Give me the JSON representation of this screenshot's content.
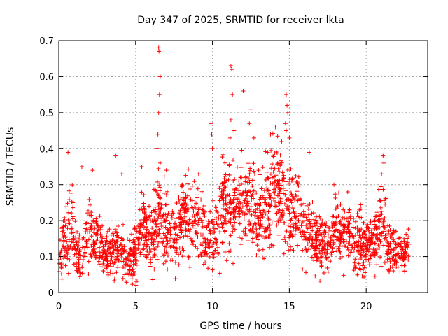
{
  "chart_data": {
    "type": "scatter",
    "title": "Day 347 of 2025, SRMTID for receiver lkta",
    "xlabel": "GPS time / hours",
    "ylabel": "SRMTID / TECUs",
    "xlim": [
      0,
      24
    ],
    "ylim": [
      0,
      0.7
    ],
    "xticks": [
      0,
      5,
      10,
      15,
      20
    ],
    "yticks": [
      0,
      0.1,
      0.2,
      0.3,
      0.4,
      0.5,
      0.6,
      0.7
    ],
    "xtick_labels": [
      "0",
      "5",
      "10",
      "15",
      "20"
    ],
    "ytick_labels": [
      "0",
      "0.1",
      "0.2",
      "0.3",
      "0.4",
      "0.5",
      "0.6",
      "0.7"
    ],
    "grid": true,
    "marker": "+",
    "color": "#ff0000",
    "x_end": 22.8,
    "envelope": [
      [
        0.0,
        0.1,
        0.05
      ],
      [
        0.5,
        0.15,
        0.07
      ],
      [
        0.8,
        0.22,
        0.09
      ],
      [
        1.0,
        0.12,
        0.05
      ],
      [
        1.5,
        0.09,
        0.04
      ],
      [
        2.0,
        0.17,
        0.07
      ],
      [
        2.5,
        0.15,
        0.06
      ],
      [
        3.0,
        0.1,
        0.04
      ],
      [
        3.5,
        0.12,
        0.05
      ],
      [
        4.0,
        0.12,
        0.06
      ],
      [
        4.5,
        0.08,
        0.04
      ],
      [
        5.0,
        0.11,
        0.05
      ],
      [
        5.5,
        0.2,
        0.07
      ],
      [
        6.0,
        0.14,
        0.06
      ],
      [
        6.5,
        0.22,
        0.09
      ],
      [
        7.0,
        0.16,
        0.07
      ],
      [
        7.5,
        0.15,
        0.06
      ],
      [
        8.0,
        0.2,
        0.07
      ],
      [
        8.5,
        0.21,
        0.07
      ],
      [
        9.0,
        0.2,
        0.08
      ],
      [
        9.5,
        0.15,
        0.07
      ],
      [
        10.0,
        0.16,
        0.07
      ],
      [
        10.5,
        0.2,
        0.08
      ],
      [
        11.0,
        0.26,
        0.1
      ],
      [
        11.5,
        0.24,
        0.09
      ],
      [
        12.0,
        0.25,
        0.09
      ],
      [
        12.5,
        0.24,
        0.09
      ],
      [
        13.0,
        0.2,
        0.08
      ],
      [
        13.5,
        0.22,
        0.09
      ],
      [
        14.0,
        0.29,
        0.1
      ],
      [
        14.5,
        0.27,
        0.09
      ],
      [
        15.0,
        0.21,
        0.08
      ],
      [
        15.5,
        0.23,
        0.08
      ],
      [
        16.0,
        0.18,
        0.07
      ],
      [
        16.5,
        0.16,
        0.06
      ],
      [
        17.0,
        0.14,
        0.06
      ],
      [
        17.5,
        0.13,
        0.05
      ],
      [
        18.0,
        0.17,
        0.06
      ],
      [
        18.5,
        0.18,
        0.07
      ],
      [
        19.0,
        0.15,
        0.06
      ],
      [
        19.5,
        0.14,
        0.06
      ],
      [
        20.0,
        0.12,
        0.05
      ],
      [
        20.5,
        0.14,
        0.05
      ],
      [
        21.0,
        0.22,
        0.08
      ],
      [
        21.5,
        0.12,
        0.05
      ],
      [
        22.0,
        0.12,
        0.04
      ],
      [
        22.5,
        0.11,
        0.04
      ],
      [
        22.8,
        0.12,
        0.04
      ]
    ],
    "spikes": [
      [
        0.6,
        0.39
      ],
      [
        1.5,
        0.35
      ],
      [
        2.2,
        0.34
      ],
      [
        3.7,
        0.38
      ],
      [
        4.1,
        0.33
      ],
      [
        5.4,
        0.35
      ],
      [
        6.5,
        0.68
      ],
      [
        6.52,
        0.67
      ],
      [
        6.6,
        0.6
      ],
      [
        6.55,
        0.55
      ],
      [
        6.5,
        0.5
      ],
      [
        6.45,
        0.44
      ],
      [
        6.4,
        0.4
      ],
      [
        6.6,
        0.36
      ],
      [
        7.0,
        0.34
      ],
      [
        9.1,
        0.33
      ],
      [
        9.9,
        0.47
      ],
      [
        9.95,
        0.44
      ],
      [
        10.0,
        0.4
      ],
      [
        11.2,
        0.63
      ],
      [
        11.25,
        0.62
      ],
      [
        11.3,
        0.55
      ],
      [
        11.2,
        0.48
      ],
      [
        11.15,
        0.43
      ],
      [
        11.4,
        0.45
      ],
      [
        12.0,
        0.56
      ],
      [
        12.5,
        0.51
      ],
      [
        12.4,
        0.47
      ],
      [
        12.7,
        0.43
      ],
      [
        13.0,
        0.34
      ],
      [
        13.6,
        0.39
      ],
      [
        14.1,
        0.46
      ],
      [
        14.5,
        0.42
      ],
      [
        14.8,
        0.55
      ],
      [
        14.85,
        0.52
      ],
      [
        14.9,
        0.5
      ],
      [
        14.75,
        0.47
      ],
      [
        14.8,
        0.45
      ],
      [
        15.0,
        0.43
      ],
      [
        16.3,
        0.39
      ],
      [
        17.9,
        0.3
      ],
      [
        18.8,
        0.28
      ],
      [
        21.1,
        0.38
      ],
      [
        21.15,
        0.36
      ],
      [
        21.0,
        0.33
      ]
    ],
    "points_per_hour": 100
  }
}
